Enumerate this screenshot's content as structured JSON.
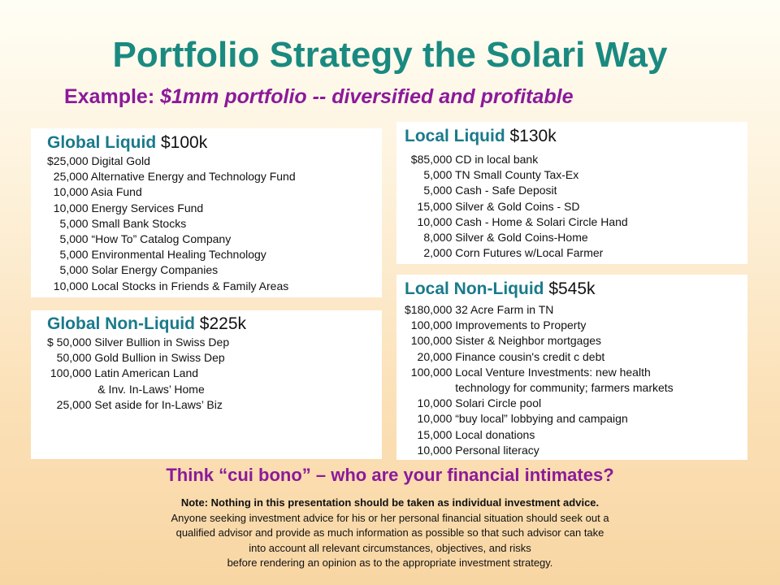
{
  "title": "Portfolio Strategy the Solari Way",
  "subtitle": {
    "prefix": "Example: ",
    "emphasis": "$1mm portfolio -- diversified and profitable"
  },
  "global_liquid": {
    "heading": "Global Liquid",
    "amount": " $100k",
    "lines": [
      "$25,000 Digital Gold",
      "  25,000 Alternative Energy and Technology Fund",
      "  10,000 Asia Fund",
      "  10,000 Energy Services Fund",
      "    5,000 Small Bank Stocks",
      "    5,000 “How To” Catalog Company",
      "    5,000 Environmental Healing Technology",
      "    5,000 Solar Energy Companies",
      "  10,000 Local Stocks in Friends & Family Areas"
    ]
  },
  "global_nonliquid": {
    "heading": "Global Non-Liquid",
    "amount": " $225k",
    "lines": [
      "$ 50,000 Silver Bullion in Swiss Dep",
      "   50,000 Gold Bullion in Swiss Dep",
      " 100,000 Latin American Land",
      "                & Inv. In-Laws’ Home",
      "   25,000 Set aside for In-Laws’ Biz"
    ]
  },
  "local_liquid": {
    "heading": "Local Liquid",
    "amount": " $130k",
    "lines": [
      "  $85,000 CD in local bank",
      "      5,000 TN Small County Tax-Ex",
      "      5,000 Cash - Safe Deposit",
      "    15,000 Silver & Gold Coins - SD",
      "    10,000 Cash - Home & Solari Circle Hand",
      "      8,000 Silver & Gold Coins-Home",
      "      2,000 Corn Futures w/Local Farmer"
    ]
  },
  "local_nonliquid": {
    "heading": "Local Non-Liquid",
    "amount": " $545k",
    "lines": [
      "$180,000 32 Acre Farm in TN",
      "  100,000 Improvements to Property",
      "  100,000 Sister & Neighbor mortgages",
      "    20,000 Finance cousin's credit c debt",
      "  100,000 Local Venture Investments: new health",
      "                technology for community; farmers markets",
      "    10,000 Solari Circle pool",
      "    10,000 “buy local” lobbying and campaign",
      "    15,000 Local donations",
      "    10,000 Personal literacy"
    ]
  },
  "question": "Think “cui bono” – who are your financial intimates?",
  "disclaimer": {
    "bold_line": "Note: Nothing in this presentation should be taken as individual investment advice.",
    "lines": [
      "Anyone seeking investment advice for his or her personal financial situation should seek out a",
      "qualified advisor and provide as much information as possible so that such advisor can take",
      "into account all relevant circumstances, objectives, and risks",
      "before rendering an opinion as to the appropriate investment strategy."
    ]
  }
}
